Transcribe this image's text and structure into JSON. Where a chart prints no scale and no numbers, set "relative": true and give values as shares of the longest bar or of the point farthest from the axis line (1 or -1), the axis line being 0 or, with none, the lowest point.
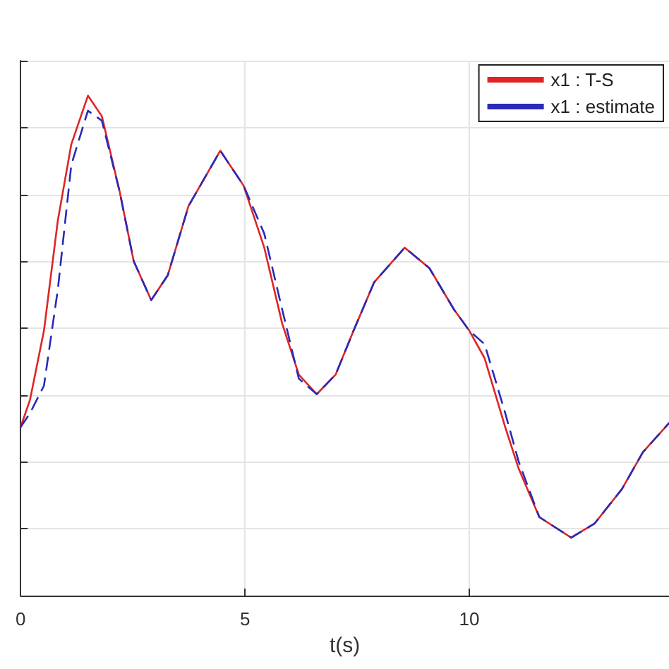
{
  "chart_data": {
    "type": "line",
    "xlabel": "t(s)",
    "relative": true,
    "xlim": [
      0,
      14.45
    ],
    "xticks": [
      0,
      5,
      10
    ],
    "grid": true,
    "legend": "top right",
    "marker": "none",
    "series": [
      {
        "name": "x1 : T-S",
        "color": "#e02424",
        "line_style": "solid",
        "x": [
          0,
          0.21,
          0.52,
          0.83,
          1.13,
          1.5,
          1.81,
          2.21,
          2.52,
          2.91,
          3.28,
          3.74,
          4.45,
          4.97,
          5.43,
          5.83,
          6.2,
          6.6,
          7.02,
          7.42,
          7.88,
          8.56,
          9.11,
          9.66,
          10.0,
          10.34,
          10.8,
          11.1,
          11.56,
          12.27,
          12.79,
          13.4,
          13.87,
          14.45
        ],
        "values": [
          0.337,
          0.392,
          0.53,
          0.751,
          0.903,
          1.0,
          0.959,
          0.807,
          0.669,
          0.591,
          0.641,
          0.779,
          0.89,
          0.82,
          0.696,
          0.544,
          0.442,
          0.403,
          0.442,
          0.53,
          0.627,
          0.696,
          0.655,
          0.572,
          0.53,
          0.475,
          0.337,
          0.254,
          0.157,
          0.116,
          0.144,
          0.213,
          0.287,
          0.345
        ]
      },
      {
        "name": "x1 : estimate",
        "color": "#2a2ab8",
        "line_style": "dashed",
        "x": [
          0,
          0.21,
          0.52,
          0.83,
          1.13,
          1.5,
          1.81,
          2.21,
          2.52,
          2.91,
          3.28,
          3.74,
          4.45,
          4.97,
          5.43,
          5.83,
          6.2,
          6.6,
          7.02,
          7.42,
          7.88,
          8.56,
          9.11,
          9.66,
          10.0,
          10.34,
          10.8,
          11.1,
          11.56,
          12.27,
          12.79,
          13.4,
          13.87,
          14.45
        ],
        "values": [
          0.337,
          0.365,
          0.42,
          0.613,
          0.862,
          0.97,
          0.95,
          0.807,
          0.669,
          0.591,
          0.641,
          0.779,
          0.89,
          0.82,
          0.724,
          0.572,
          0.434,
          0.403,
          0.442,
          0.53,
          0.627,
          0.696,
          0.655,
          0.572,
          0.53,
          0.503,
          0.365,
          0.268,
          0.157,
          0.116,
          0.144,
          0.213,
          0.287,
          0.345
        ]
      }
    ]
  }
}
